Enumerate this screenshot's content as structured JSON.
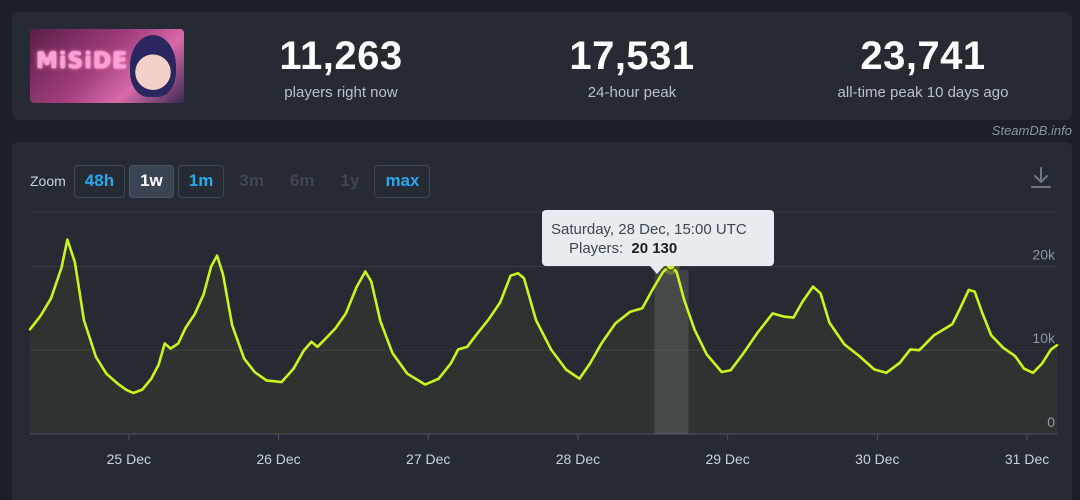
{
  "stats": {
    "current_players": "11,263",
    "current_label": "players right now",
    "peak_24h": "17,531",
    "peak_24h_label": "24-hour peak",
    "all_time_peak": "23,741",
    "all_time_label": "all-time peak 10 days ago"
  },
  "logo_text": "MiSiDE",
  "credit": "SteamDB.info",
  "zoom": {
    "label": "Zoom",
    "buttons": [
      {
        "label": "48h",
        "state": "active"
      },
      {
        "label": "1w",
        "state": "selected"
      },
      {
        "label": "1m",
        "state": "active"
      },
      {
        "label": "3m",
        "state": "disabled"
      },
      {
        "label": "6m",
        "state": "disabled"
      },
      {
        "label": "1y",
        "state": "disabled"
      },
      {
        "label": "max",
        "state": "active"
      }
    ]
  },
  "tooltip": {
    "title": "Saturday, 28 Dec, 15:00 UTC",
    "series_label": "Players:",
    "value_text": "20 130"
  },
  "colors": {
    "line": "#cdf31d",
    "accent": "#29a7ef",
    "background": "#1b1f26",
    "panel": "#252a33"
  },
  "chart_data": {
    "type": "line",
    "x_unit": "days since 25 Dec 00:00 UTC",
    "x_ticks": [
      {
        "x": 0,
        "label": "25 Dec"
      },
      {
        "x": 1,
        "label": "26 Dec"
      },
      {
        "x": 2,
        "label": "27 Dec"
      },
      {
        "x": 3,
        "label": "28 Dec"
      },
      {
        "x": 4,
        "label": "29 Dec"
      },
      {
        "x": 5,
        "label": "30 Dec"
      },
      {
        "x": 6,
        "label": "31 Dec"
      }
    ],
    "y_ticks": [
      {
        "y": 0,
        "label": "0"
      },
      {
        "y": 10000,
        "label": "10k"
      },
      {
        "y": 20000,
        "label": "20k"
      }
    ],
    "xlim": [
      -0.66,
      6.2
    ],
    "ylim": [
      0,
      26500
    ],
    "grid": true,
    "highlight_x": 3.625,
    "series": [
      {
        "name": "Players",
        "points": [
          [
            -0.66,
            12500
          ],
          [
            -0.59,
            14100
          ],
          [
            -0.52,
            16200
          ],
          [
            -0.45,
            19800
          ],
          [
            -0.41,
            23200
          ],
          [
            -0.36,
            20500
          ],
          [
            -0.3,
            13600
          ],
          [
            -0.22,
            9200
          ],
          [
            -0.15,
            7200
          ],
          [
            -0.08,
            6100
          ],
          [
            -0.02,
            5300
          ],
          [
            0.03,
            4900
          ],
          [
            0.09,
            5300
          ],
          [
            0.15,
            6600
          ],
          [
            0.2,
            8300
          ],
          [
            0.24,
            10800
          ],
          [
            0.28,
            10200
          ],
          [
            0.33,
            10800
          ],
          [
            0.38,
            12700
          ],
          [
            0.44,
            14300
          ],
          [
            0.5,
            16700
          ],
          [
            0.55,
            20000
          ],
          [
            0.59,
            21300
          ],
          [
            0.63,
            19000
          ],
          [
            0.69,
            13000
          ],
          [
            0.77,
            9000
          ],
          [
            0.84,
            7400
          ],
          [
            0.92,
            6400
          ],
          [
            1.02,
            6200
          ],
          [
            1.1,
            7800
          ],
          [
            1.17,
            10000
          ],
          [
            1.22,
            11000
          ],
          [
            1.26,
            10400
          ],
          [
            1.31,
            11300
          ],
          [
            1.38,
            12600
          ],
          [
            1.45,
            14400
          ],
          [
            1.52,
            17500
          ],
          [
            1.58,
            19400
          ],
          [
            1.62,
            18200
          ],
          [
            1.68,
            13500
          ],
          [
            1.76,
            9700
          ],
          [
            1.86,
            7200
          ],
          [
            1.98,
            5900
          ],
          [
            2.07,
            6600
          ],
          [
            2.15,
            8400
          ],
          [
            2.2,
            10100
          ],
          [
            2.26,
            10400
          ],
          [
            2.32,
            11800
          ],
          [
            2.4,
            13600
          ],
          [
            2.48,
            15700
          ],
          [
            2.55,
            18900
          ],
          [
            2.6,
            19200
          ],
          [
            2.64,
            18600
          ],
          [
            2.72,
            13600
          ],
          [
            2.82,
            10100
          ],
          [
            2.92,
            7700
          ],
          [
            3.01,
            6600
          ],
          [
            3.08,
            8400
          ],
          [
            3.16,
            10900
          ],
          [
            3.25,
            13200
          ],
          [
            3.35,
            14600
          ],
          [
            3.43,
            15000
          ],
          [
            3.5,
            17300
          ],
          [
            3.57,
            19400
          ],
          [
            3.62,
            20100
          ],
          [
            3.66,
            19300
          ],
          [
            3.71,
            16000
          ],
          [
            3.78,
            12400
          ],
          [
            3.86,
            9500
          ],
          [
            3.96,
            7400
          ],
          [
            4.02,
            7600
          ],
          [
            4.1,
            9500
          ],
          [
            4.2,
            12100
          ],
          [
            4.3,
            14400
          ],
          [
            4.38,
            14000
          ],
          [
            4.44,
            13900
          ],
          [
            4.5,
            15800
          ],
          [
            4.57,
            17600
          ],
          [
            4.62,
            16800
          ],
          [
            4.68,
            13300
          ],
          [
            4.78,
            10700
          ],
          [
            4.88,
            9300
          ],
          [
            4.98,
            7700
          ],
          [
            5.06,
            7300
          ],
          [
            5.15,
            8500
          ],
          [
            5.22,
            10100
          ],
          [
            5.28,
            10000
          ],
          [
            5.38,
            11800
          ],
          [
            5.5,
            13100
          ],
          [
            5.55,
            14900
          ],
          [
            5.61,
            17200
          ],
          [
            5.65,
            17000
          ],
          [
            5.7,
            14500
          ],
          [
            5.76,
            11800
          ],
          [
            5.84,
            10300
          ],
          [
            5.92,
            9300
          ],
          [
            5.98,
            7800
          ],
          [
            6.04,
            7300
          ],
          [
            6.1,
            8400
          ],
          [
            6.16,
            10100
          ],
          [
            6.2,
            10600
          ]
        ]
      }
    ]
  }
}
